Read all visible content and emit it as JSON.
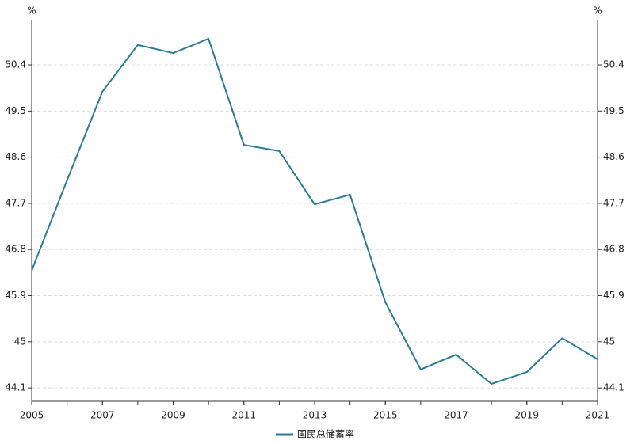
{
  "chart_data": {
    "type": "line",
    "y_label": "%",
    "y2_label": "%",
    "x": [
      2005,
      2006,
      2007,
      2008,
      2009,
      2010,
      2011,
      2012,
      2013,
      2014,
      2015,
      2016,
      2017,
      2018,
      2019,
      2020,
      2021
    ],
    "series": [
      {
        "name": "国民总储蓄率",
        "color": "#2b7a9b",
        "values": [
          46.39,
          48.15,
          49.88,
          50.79,
          50.63,
          50.91,
          48.84,
          48.72,
          47.68,
          47.87,
          45.77,
          44.46,
          44.75,
          44.18,
          44.41,
          45.07,
          44.66
        ]
      }
    ],
    "xlim": [
      2005,
      2021
    ],
    "xticks": [
      2005,
      2007,
      2009,
      2011,
      2013,
      2015,
      2017,
      2019,
      2021
    ],
    "ylim": [
      43.84,
      51.28
    ],
    "yticks": [
      44.1,
      45,
      45.9,
      46.8,
      47.7,
      48.6,
      49.5,
      50.4
    ],
    "y2lim": [
      43.84,
      51.28
    ],
    "y2ticks": [
      44.1,
      45,
      45.9,
      46.8,
      47.7,
      48.6,
      49.5,
      50.4
    ],
    "grid": true,
    "legend": "bottom"
  }
}
